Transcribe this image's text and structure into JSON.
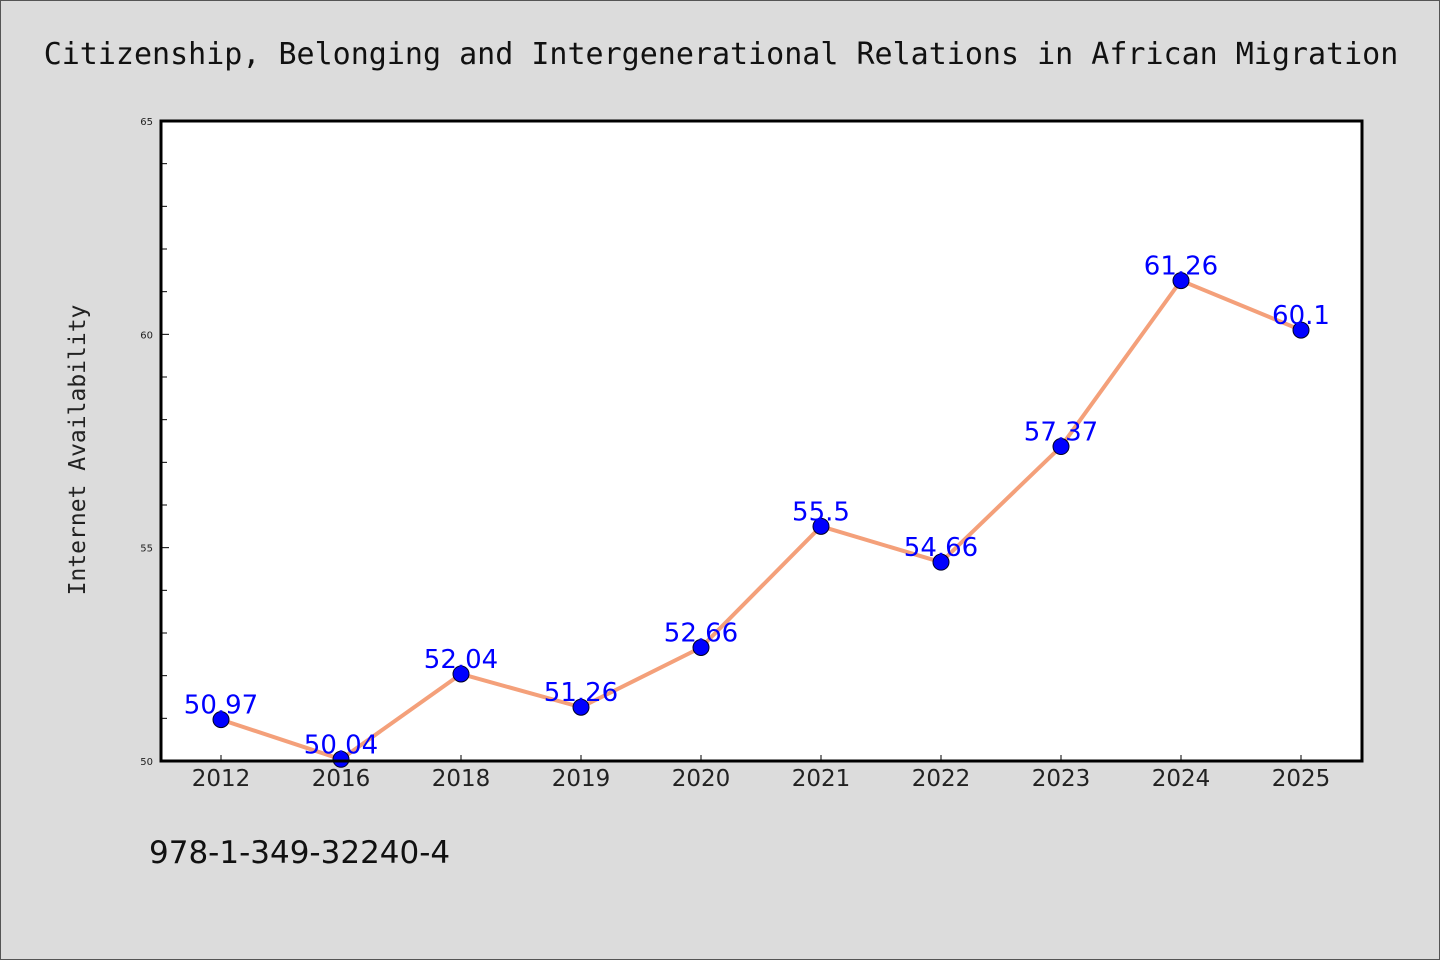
{
  "chart_data": {
    "type": "line",
    "title": "Citizenship, Belonging and Intergenerational Relations in African Migration",
    "xlabel": "",
    "ylabel": "Internet Availability",
    "categories": [
      "2012",
      "2016",
      "2018",
      "2019",
      "2020",
      "2021",
      "2022",
      "2023",
      "2024",
      "2025"
    ],
    "series": [
      {
        "values": [
          50.97,
          50.04,
          52.04,
          51.26,
          52.66,
          55.5,
          54.66,
          57.37,
          61.26,
          60.1
        ],
        "labels": [
          "50.97",
          "50.04",
          "52.04",
          "51.26",
          "52.66",
          "55.5",
          "54.66",
          "57.37",
          "61.26",
          "60.1"
        ]
      }
    ],
    "ylim": [
      50,
      65
    ],
    "yticks": [
      "50",
      "55",
      "60",
      "65"
    ],
    "grid": false,
    "legend": "none",
    "colors": {
      "line": "#f4a07a",
      "marker": "#0000ff",
      "data_label": "#0000ff",
      "plot_background": "#ffffff",
      "page_background": "#dcdcdc"
    }
  },
  "footer": {
    "isbn": "978-1-349-32240-4"
  }
}
